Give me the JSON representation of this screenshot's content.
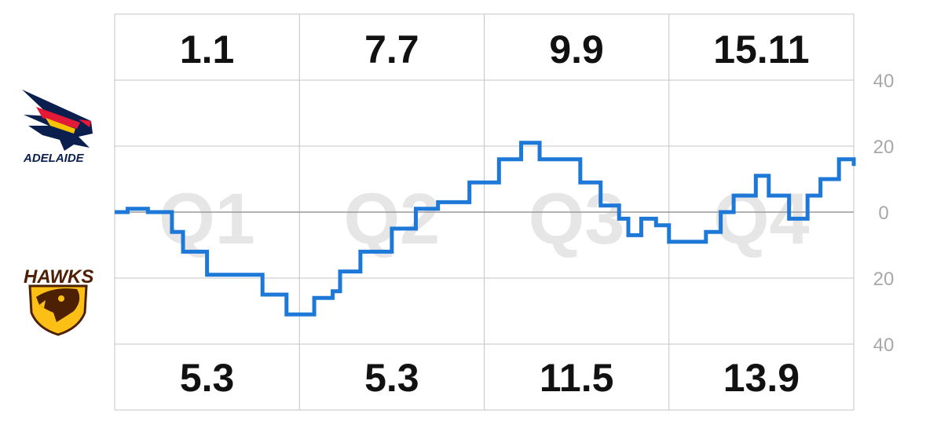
{
  "teams": {
    "top": {
      "name": "ADELAIDE",
      "logo_icon": "adelaide-crows-logo",
      "colors": [
        "#0b1f4f",
        "#e21937",
        "#f7c300"
      ]
    },
    "bottom": {
      "name": "HAWKS",
      "logo_icon": "hawthorn-hawks-logo",
      "colors": [
        "#4d2004",
        "#fbbf15"
      ]
    }
  },
  "chart_data": {
    "type": "line",
    "step": true,
    "title": "",
    "xlabel": "",
    "ylabel": "",
    "quarters": [
      "Q1",
      "Q2",
      "Q3",
      "Q4"
    ],
    "top_scores": [
      "1.1",
      "7.7",
      "9.9",
      "15.11"
    ],
    "bottom_scores": [
      "5.3",
      "5.3",
      "11.5",
      "13.9"
    ],
    "ylim": [
      -40,
      40
    ],
    "y_ticks": [
      40,
      20,
      0,
      -20,
      -40
    ],
    "y_tick_labels": [
      "40",
      "20",
      "0",
      "20",
      "40"
    ],
    "x_range": [
      0,
      4
    ],
    "grid": true,
    "line_color": "#1e78d7",
    "series": [
      {
        "x": [
          0,
          0.07,
          0.18,
          0.31,
          0.37,
          0.5,
          0.67,
          0.8,
          0.93,
          1.08,
          1.18,
          1.22,
          1.33,
          1.5,
          1.63,
          1.75,
          1.92,
          2.08,
          2.2,
          2.3,
          2.42,
          2.52,
          2.63,
          2.73,
          2.78,
          2.85,
          2.93,
          3.0,
          3.2,
          3.28,
          3.35,
          3.47,
          3.54,
          3.65,
          3.75,
          3.82,
          3.92,
          4.0
        ],
        "y": [
          0,
          1,
          0,
          -6,
          -12,
          -19,
          -19,
          -25,
          -31,
          -26,
          -24,
          -18,
          -12,
          -5,
          1,
          3,
          9,
          16,
          21,
          16,
          16,
          9,
          2,
          -2,
          -7,
          -2,
          -4,
          -9,
          -6,
          0,
          5,
          11,
          5,
          -2,
          5,
          10,
          16,
          14
        ]
      }
    ]
  }
}
